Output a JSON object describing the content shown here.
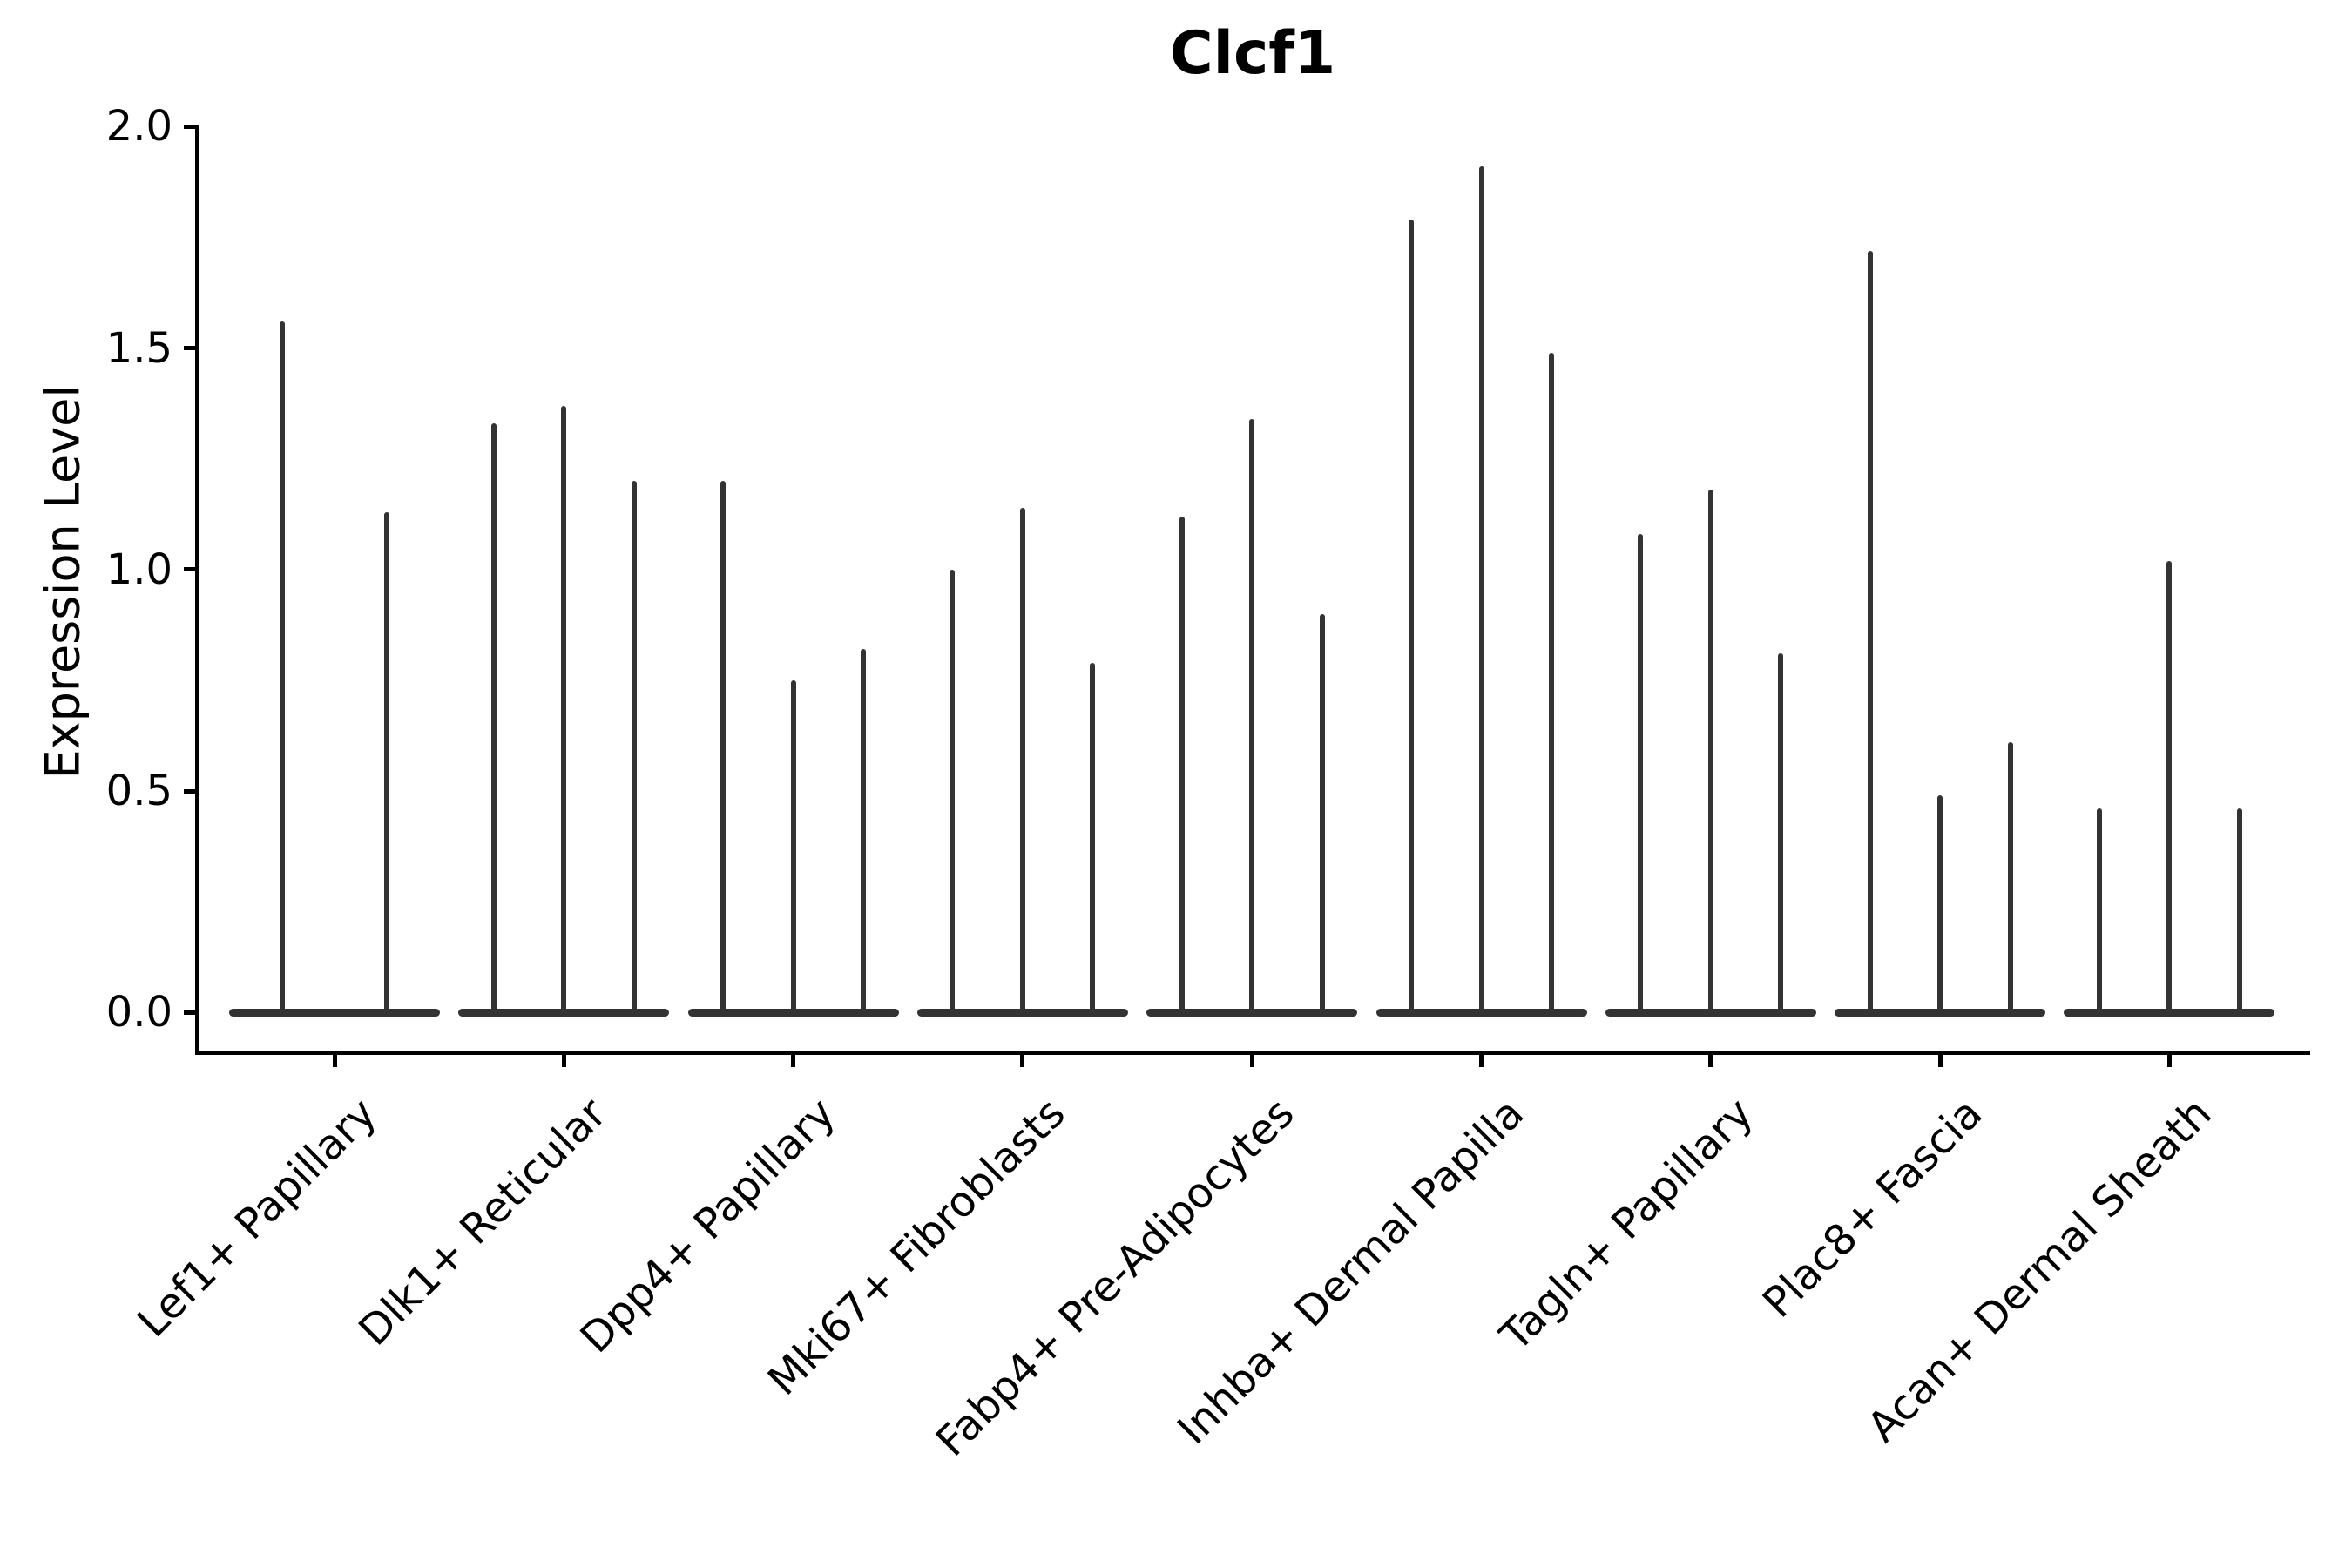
{
  "title": "Clcf1",
  "y_axis": {
    "label": "Expression Level",
    "tick_labels": [
      "2.0",
      "1.5",
      "1.0",
      "0.5",
      "0.0"
    ],
    "tick_values": [
      2.0,
      1.5,
      1.0,
      0.5,
      0.0
    ]
  },
  "x_axis": {
    "tick_labels": [
      "Lef1+ Papillary",
      "Dlk1+ Reticular",
      "Dpp4+ Papillary",
      "Mki67+ Fibroblasts",
      "Fabp4+ Pre-Adipocytes",
      "Inhba+ Dermal Papilla",
      "Tagln+ Papillary",
      "Plac8+ Fascia",
      "Acan+ Dermal Sheath"
    ]
  },
  "chart_data": {
    "type": "violin",
    "title": "Clcf1",
    "xlabel": "",
    "ylabel": "Expression Level",
    "ylim": [
      -0.09,
      2.0
    ],
    "yticks": [
      0.0,
      0.5,
      1.0,
      1.5,
      2.0
    ],
    "grid": false,
    "legend": "none",
    "description": "Needle-thin violins: nearly all density is a flat blob at expression 0, with a thin tail rising to the listed peak value. Multiple violins per cell-type category.",
    "categories": [
      "Lef1+ Papillary",
      "Dlk1+ Reticular",
      "Dpp4+ Papillary",
      "Mki67+ Fibroblasts",
      "Fabp4+ Pre-Adipocytes",
      "Inhba+ Dermal Papilla",
      "Tagln+ Papillary",
      "Plac8+ Fascia",
      "Acan+ Dermal Sheath"
    ],
    "series": [
      {
        "category": "Lef1+ Papillary",
        "violin_peaks": [
          1.56,
          1.13
        ]
      },
      {
        "category": "Dlk1+ Reticular",
        "violin_peaks": [
          1.33,
          1.37,
          1.2
        ]
      },
      {
        "category": "Dpp4+ Papillary",
        "violin_peaks": [
          1.2,
          0.75,
          0.82
        ]
      },
      {
        "category": "Mki67+ Fibroblasts",
        "violin_peaks": [
          1.0,
          1.14,
          0.79
        ]
      },
      {
        "category": "Fabp4+ Pre-Adipocytes",
        "violin_peaks": [
          1.12,
          1.34,
          0.9
        ]
      },
      {
        "category": "Inhba+ Dermal Papilla",
        "violin_peaks": [
          1.79,
          1.91,
          1.49
        ]
      },
      {
        "category": "Tagln+ Papillary",
        "violin_peaks": [
          1.08,
          1.18,
          0.81
        ]
      },
      {
        "category": "Plac8+ Fascia",
        "violin_peaks": [
          1.72,
          0.49,
          0.61
        ]
      },
      {
        "category": "Acan+ Dermal Sheath",
        "violin_peaks": [
          0.46,
          1.02,
          0.46
        ]
      }
    ]
  },
  "colors": {
    "violin": "#333333",
    "axis": "#000000",
    "text": "#000000",
    "background": "#ffffff"
  }
}
